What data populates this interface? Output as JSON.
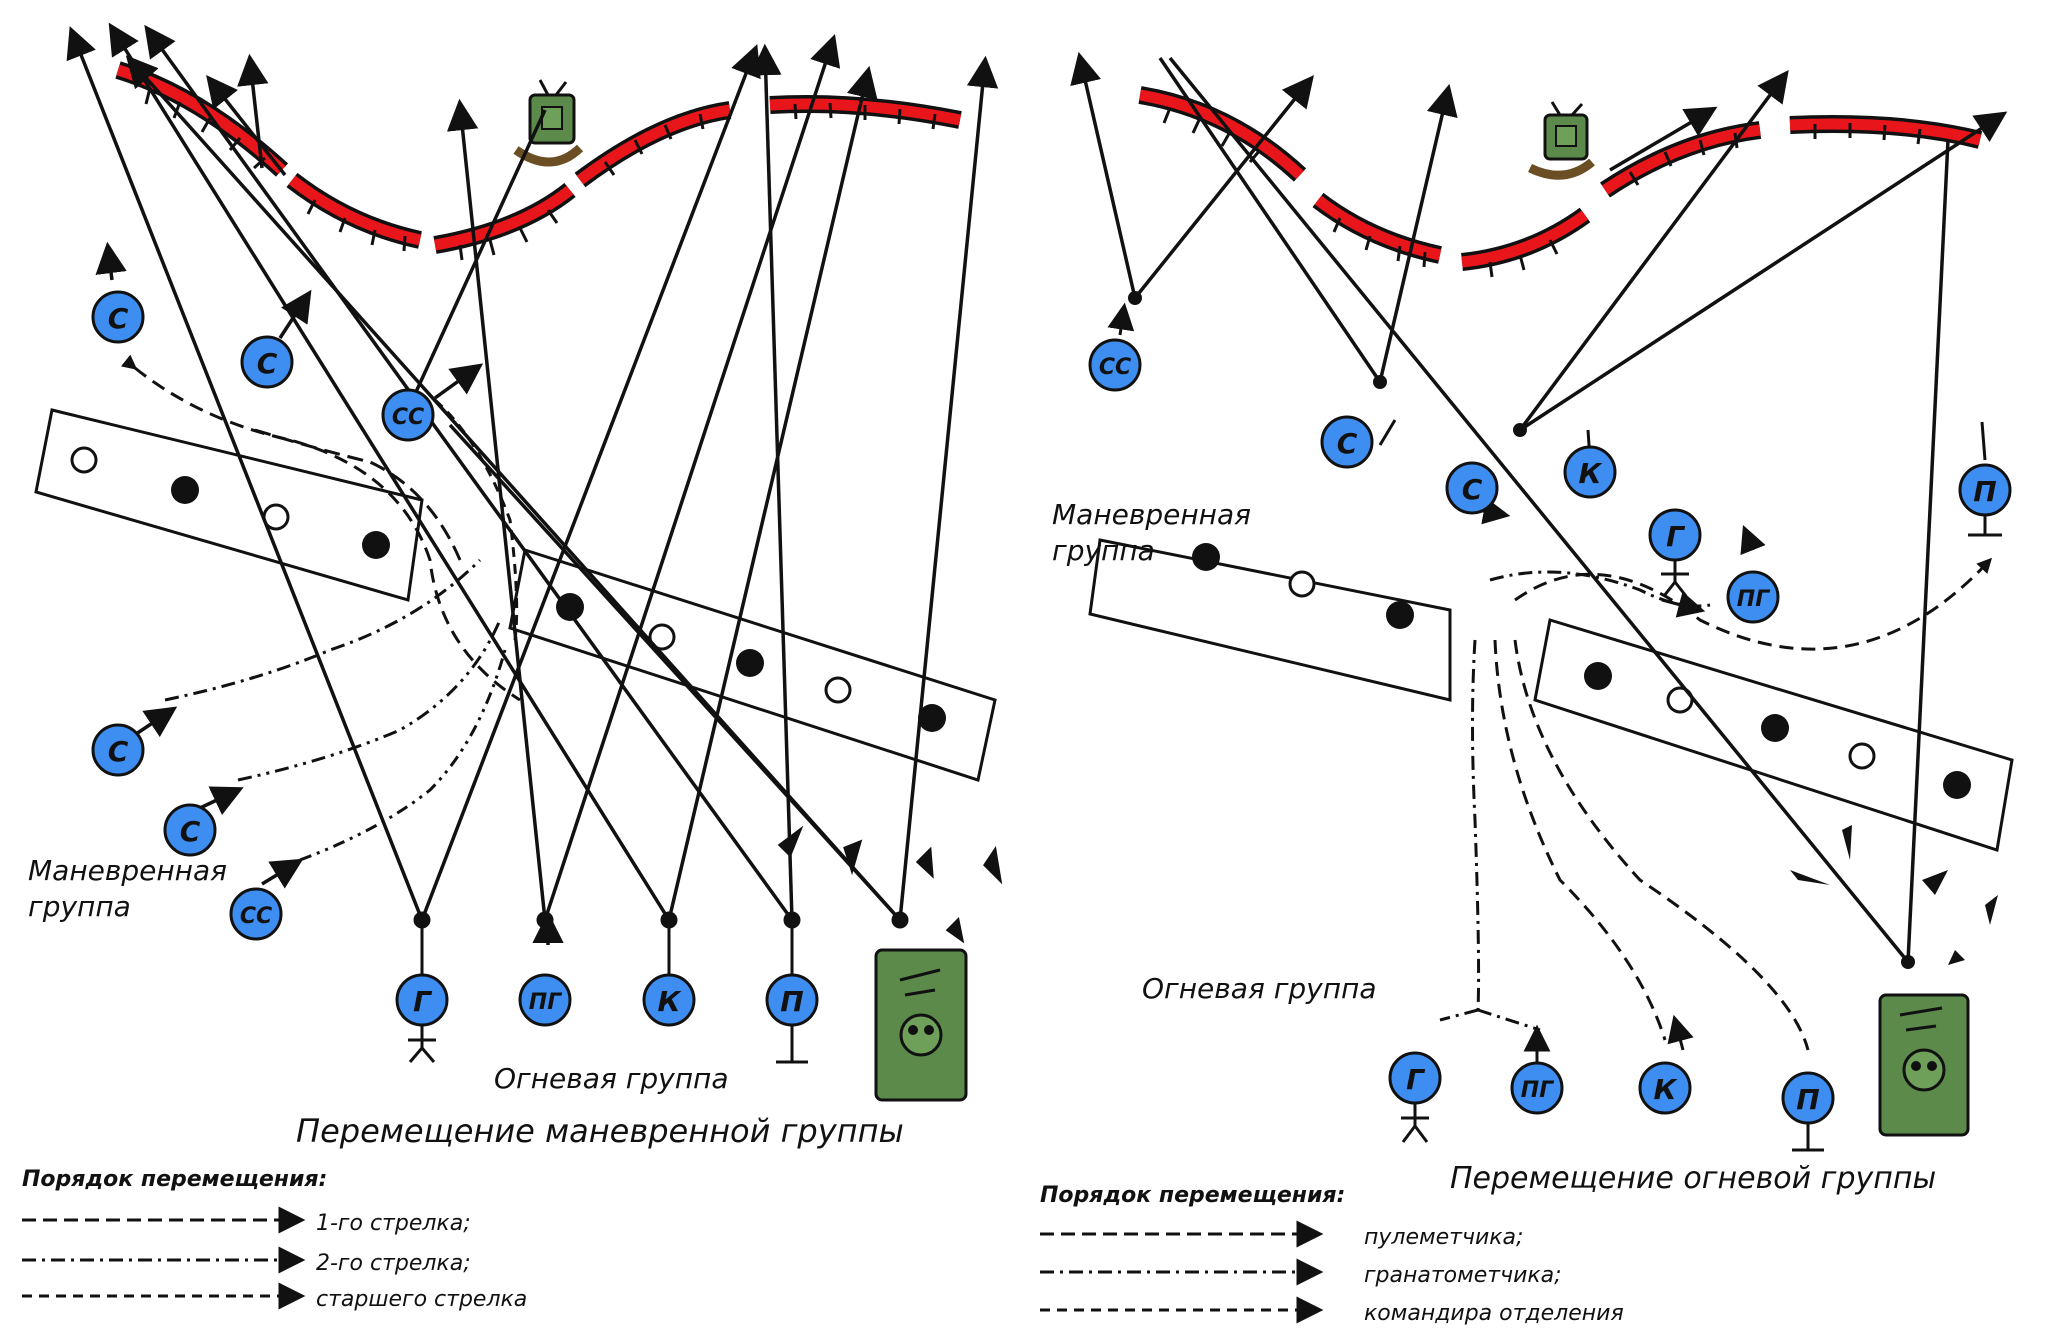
{
  "left_panel": {
    "caption": "Перемещение маневренной группы",
    "maneuver_group_label_line1": "Маневренная",
    "maneuver_group_label_line2": "группа",
    "fire_group_label": "Огневая группа",
    "legend": {
      "title": "Порядок перемещения:",
      "items": [
        "1-го стрелка;",
        "2-го стрелка;",
        "старшего стрелка"
      ]
    },
    "units": {
      "c1": "С",
      "c2": "С",
      "ss_top": "СС",
      "c3": "С",
      "c4": "С",
      "ss_bottom": "СС",
      "g": "Г",
      "pg": "ПГ",
      "k": "К",
      "p": "П"
    }
  },
  "right_panel": {
    "caption": "Перемещение огневой группы",
    "maneuver_group_label_line1": "Маневренная",
    "maneuver_group_label_line2": "группа",
    "fire_group_label": "Огневая группа",
    "legend": {
      "title": "Порядок перемещения:",
      "items": [
        "пулеметчика;",
        "гранатометчика;",
        "командира отделения"
      ]
    },
    "units": {
      "ss": "СС",
      "c_left": "С",
      "c_mid": "С",
      "k_top": "К",
      "g_top": "Г",
      "pg_top": "ПГ",
      "p_top": "П",
      "g": "Г",
      "pg": "ПГ",
      "k": "К",
      "p": "П"
    }
  },
  "colors": {
    "unit_fill": "#3d8ef0",
    "trench_fill": "#e8161b",
    "vehicle_fill": "#5c8a4a",
    "line": "#111111"
  }
}
